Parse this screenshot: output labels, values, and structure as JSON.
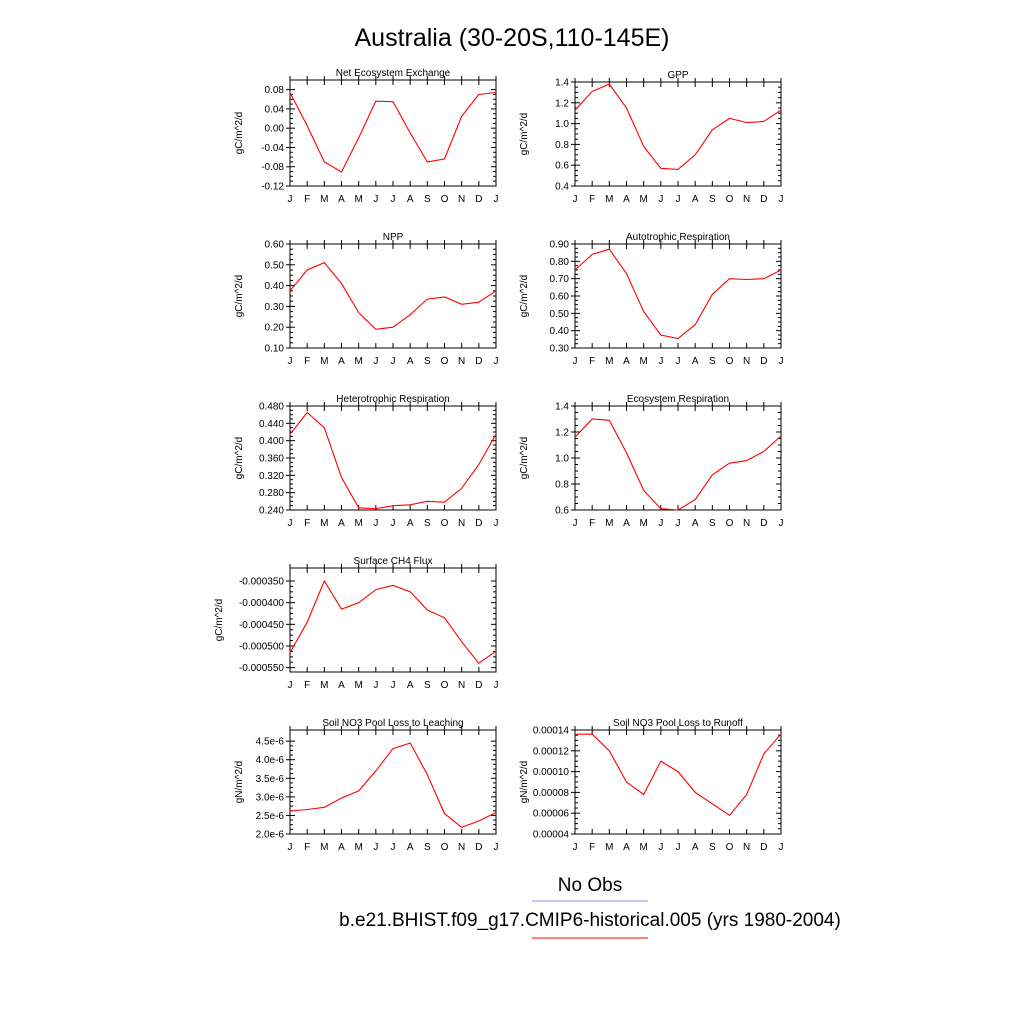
{
  "page": {
    "title": "Australia (30-20S,110-145E)",
    "legend": [
      {
        "label": "No Obs",
        "color": "#8a8aee"
      },
      {
        "label": "b.e21.BHIST.f09_g17.CMIP6-historical.005 (yrs 1980-2004)",
        "color": "#ff0000"
      }
    ]
  },
  "chart_data": [
    {
      "type": "line",
      "title": "Net Ecosystem Exchange",
      "ylabel": "gC/m^2/d",
      "x": [
        "J",
        "F",
        "M",
        "A",
        "M",
        "J",
        "J",
        "A",
        "S",
        "O",
        "N",
        "D",
        "J"
      ],
      "ylim": [
        -0.12,
        0.1
      ],
      "yticks": [
        -0.12,
        -0.08,
        -0.04,
        0.0,
        0.04,
        0.08
      ],
      "ytick_labels": [
        "-0.12",
        "-0.08",
        "-0.04",
        "0.00",
        "0.04",
        "0.08"
      ],
      "series": [
        {
          "color": "#ff0000",
          "values": [
            0.074,
            0.005,
            -0.07,
            -0.091,
            -0.02,
            0.056,
            0.055,
            -0.01,
            -0.07,
            -0.064,
            0.025,
            0.07,
            0.074
          ]
        }
      ]
    },
    {
      "type": "line",
      "title": "GPP",
      "ylabel": "gC/m^2/d",
      "x": [
        "J",
        "F",
        "M",
        "A",
        "M",
        "J",
        "J",
        "A",
        "S",
        "O",
        "N",
        "D",
        "J"
      ],
      "ylim": [
        0.4,
        1.4
      ],
      "yticks": [
        0.4,
        0.6,
        0.8,
        1.0,
        1.2,
        1.4
      ],
      "ytick_labels": [
        "0.4",
        "0.6",
        "0.8",
        "1.0",
        "1.2",
        "1.4"
      ],
      "series": [
        {
          "color": "#ff0000",
          "values": [
            1.13,
            1.31,
            1.38,
            1.15,
            0.78,
            0.57,
            0.56,
            0.7,
            0.94,
            1.05,
            1.01,
            1.02,
            1.13
          ]
        }
      ]
    },
    {
      "type": "line",
      "title": "NPP",
      "ylabel": "gC/m^2/d",
      "x": [
        "J",
        "F",
        "M",
        "A",
        "M",
        "J",
        "J",
        "A",
        "S",
        "O",
        "N",
        "D",
        "J"
      ],
      "ylim": [
        0.1,
        0.6
      ],
      "yticks": [
        0.1,
        0.2,
        0.3,
        0.4,
        0.5,
        0.6
      ],
      "ytick_labels": [
        "0.10",
        "0.20",
        "0.30",
        "0.40",
        "0.50",
        "0.60"
      ],
      "series": [
        {
          "color": "#ff0000",
          "values": [
            0.375,
            0.475,
            0.51,
            0.41,
            0.27,
            0.19,
            0.2,
            0.26,
            0.335,
            0.345,
            0.31,
            0.32,
            0.375
          ]
        }
      ]
    },
    {
      "type": "line",
      "title": "Autotrophic Respiration",
      "ylabel": "gC/m^2/d",
      "x": [
        "J",
        "F",
        "M",
        "A",
        "M",
        "J",
        "J",
        "A",
        "S",
        "O",
        "N",
        "D",
        "J"
      ],
      "ylim": [
        0.3,
        0.9
      ],
      "yticks": [
        0.3,
        0.4,
        0.5,
        0.6,
        0.7,
        0.8,
        0.9
      ],
      "ytick_labels": [
        "0.30",
        "0.40",
        "0.50",
        "0.60",
        "0.70",
        "0.80",
        "0.90"
      ],
      "series": [
        {
          "color": "#ff0000",
          "values": [
            0.75,
            0.84,
            0.87,
            0.73,
            0.51,
            0.375,
            0.355,
            0.435,
            0.61,
            0.7,
            0.695,
            0.7,
            0.75
          ]
        }
      ]
    },
    {
      "type": "line",
      "title": "Heterotrophic Respiration",
      "ylabel": "gC/m^2/d",
      "x": [
        "J",
        "F",
        "M",
        "A",
        "M",
        "J",
        "J",
        "A",
        "S",
        "O",
        "N",
        "D",
        "J"
      ],
      "ylim": [
        0.24,
        0.48
      ],
      "yticks": [
        0.24,
        0.28,
        0.32,
        0.36,
        0.4,
        0.44,
        0.48
      ],
      "ytick_labels": [
        "0.240",
        "0.280",
        "0.320",
        "0.360",
        "0.400",
        "0.440",
        "0.480"
      ],
      "series": [
        {
          "color": "#ff0000",
          "values": [
            0.415,
            0.465,
            0.43,
            0.315,
            0.245,
            0.243,
            0.25,
            0.252,
            0.26,
            0.258,
            0.29,
            0.345,
            0.415
          ]
        }
      ]
    },
    {
      "type": "line",
      "title": "Ecosystem Respiration",
      "ylabel": "gC/m^2/d",
      "x": [
        "J",
        "F",
        "M",
        "A",
        "M",
        "J",
        "J",
        "A",
        "S",
        "O",
        "N",
        "D",
        "J"
      ],
      "ylim": [
        0.6,
        1.4
      ],
      "yticks": [
        0.6,
        0.8,
        1.0,
        1.2,
        1.4
      ],
      "ytick_labels": [
        "0.6",
        "0.8",
        "1.0",
        "1.2",
        "1.4"
      ],
      "series": [
        {
          "color": "#ff0000",
          "values": [
            1.16,
            1.3,
            1.29,
            1.04,
            0.75,
            0.61,
            0.6,
            0.68,
            0.87,
            0.96,
            0.98,
            1.05,
            1.17
          ]
        }
      ]
    },
    {
      "type": "line",
      "title": "Surface CH4 Flux",
      "ylabel": "gC/m^2/d",
      "x": [
        "J",
        "F",
        "M",
        "A",
        "M",
        "J",
        "J",
        "A",
        "S",
        "O",
        "N",
        "D",
        "J"
      ],
      "ylim": [
        -0.00056,
        -0.00032
      ],
      "yticks": [
        -0.00055,
        -0.0005,
        -0.00045,
        -0.0004,
        -0.00035
      ],
      "ytick_labels": [
        "-0.000550",
        "-0.000500",
        "-0.000450",
        "-0.000400",
        "-0.000350"
      ],
      "series": [
        {
          "color": "#ff0000",
          "values": [
            -0.000515,
            -0.000445,
            -0.00035,
            -0.000415,
            -0.0004,
            -0.00037,
            -0.00036,
            -0.000375,
            -0.000417,
            -0.000435,
            -0.00049,
            -0.00054,
            -0.000512
          ]
        }
      ]
    },
    {
      "type": "line",
      "title": "Soil NO3 Pool Loss to Leaching",
      "ylabel": "gN/m^2/d",
      "x": [
        "J",
        "F",
        "M",
        "A",
        "M",
        "J",
        "J",
        "A",
        "S",
        "O",
        "N",
        "D",
        "J"
      ],
      "ylim": [
        2e-06,
        4.8e-06
      ],
      "yticks": [
        2e-06,
        2.5e-06,
        3e-06,
        3.5e-06,
        4e-06,
        4.5e-06
      ],
      "ytick_labels": [
        "2.0e-6",
        "2.5e-6",
        "3.0e-6",
        "3.5e-6",
        "4.0e-6",
        "4.5e-6"
      ],
      "series": [
        {
          "color": "#ff0000",
          "values": [
            2.62e-06,
            2.66e-06,
            2.72e-06,
            2.97e-06,
            3.16e-06,
            3.7e-06,
            4.3e-06,
            4.45e-06,
            3.6e-06,
            2.55e-06,
            2.18e-06,
            2.35e-06,
            2.58e-06
          ]
        }
      ]
    },
    {
      "type": "line",
      "title": "Soil NO3 Pool Loss to Runoff",
      "ylabel": "gN/m^2/d",
      "x": [
        "J",
        "F",
        "M",
        "A",
        "M",
        "J",
        "J",
        "A",
        "S",
        "O",
        "N",
        "D",
        "J"
      ],
      "ylim": [
        4e-05,
        0.00014
      ],
      "yticks": [
        4e-05,
        6e-05,
        8e-05,
        0.0001,
        0.00012,
        0.00014
      ],
      "ytick_labels": [
        "0.00004",
        "0.00006",
        "0.00008",
        "0.00010",
        "0.00012",
        "0.00014"
      ],
      "series": [
        {
          "color": "#ff0000",
          "values": [
            0.000136,
            0.000136,
            0.00012,
            9e-05,
            7.8e-05,
            0.00011,
            0.0001,
            8e-05,
            6.9e-05,
            5.8e-05,
            7.8e-05,
            0.000117,
            0.000136
          ]
        }
      ]
    }
  ]
}
